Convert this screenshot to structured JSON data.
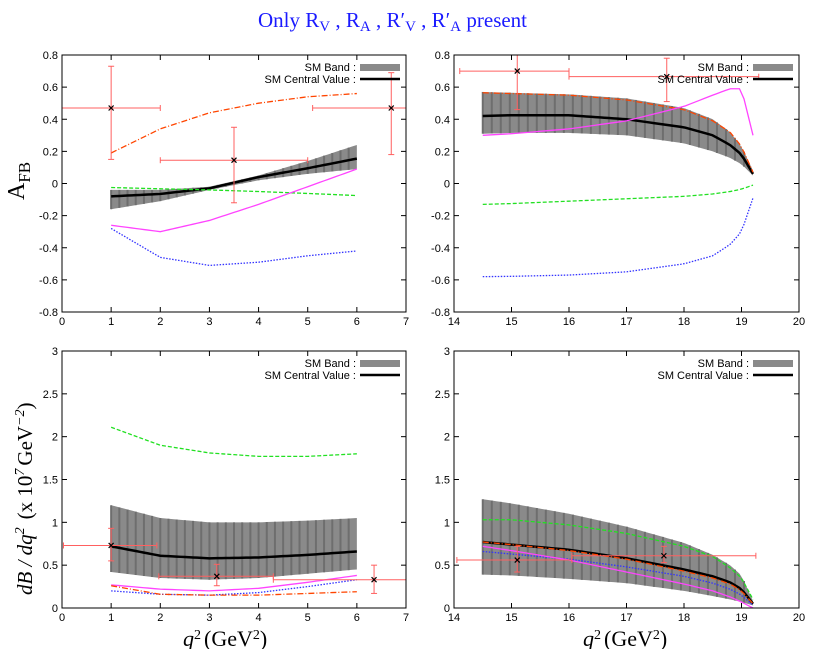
{
  "title": {
    "prefix": "Only R",
    "parts": [
      [
        "V",
        " , R"
      ],
      [
        "A",
        " , R′"
      ],
      [
        "V",
        " , R′"
      ],
      [
        "A",
        " present"
      ]
    ]
  },
  "title_text": "Only R_V , R_A , R′_V , R′_A present",
  "colors": {
    "title": "#1a1aff",
    "band": "#8a8a8a",
    "central": "#000000",
    "orange": "#ff4500",
    "green": "#22e022",
    "magenta": "#ff44ff",
    "blue": "#3333ff",
    "errorbar": "#ff6060"
  },
  "legend": {
    "band": "SM Band :",
    "central": "SM Central Value :"
  },
  "ylabels": {
    "top": "A",
    "top_sub": "FB",
    "bottom": "dB / dq",
    "bottom_exp": "2",
    "bottom_unit": "(x 10",
    "bottom_unit_exp": "7",
    "bottom_unit2": "GeV",
    "bottom_unit2_exp": "−2",
    ")": ")"
  },
  "xlabel": {
    "q": "q",
    "exp": "2",
    "unit": "(GeV",
    "unit_exp": "2",
    "close": ")"
  },
  "chart_data": [
    {
      "type": "line",
      "panel": "top-left",
      "xlim": [
        0,
        7
      ],
      "ylim": [
        -0.8,
        0.8
      ],
      "xticks": [
        "0",
        "1",
        "2",
        "3",
        "4",
        "5",
        "6",
        "7"
      ],
      "yticks": [
        "-0.8",
        "-0.6",
        "-0.4",
        "-0.2",
        "0",
        "0.2",
        "0.4",
        "0.6",
        "0.8"
      ],
      "x": [
        1,
        2,
        3,
        4,
        5,
        6
      ],
      "band_upper": [
        -0.04,
        -0.04,
        -0.02,
        0.05,
        0.14,
        0.24
      ],
      "band_lower": [
        -0.16,
        -0.11,
        -0.04,
        0.02,
        0.06,
        0.09
      ],
      "series": [
        {
          "color": "central",
          "values": [
            -0.08,
            -0.065,
            -0.03,
            0.04,
            0.095,
            0.155
          ]
        },
        {
          "color": "orange",
          "values": [
            0.19,
            0.34,
            0.44,
            0.5,
            0.54,
            0.56
          ]
        },
        {
          "color": "green",
          "values": [
            -0.025,
            -0.033,
            -0.04,
            -0.05,
            -0.062,
            -0.075
          ]
        },
        {
          "color": "magenta",
          "values": [
            -0.26,
            -0.3,
            -0.23,
            -0.13,
            -0.02,
            0.09
          ]
        },
        {
          "color": "blue",
          "values": [
            -0.28,
            -0.46,
            -0.51,
            -0.49,
            -0.45,
            -0.42
          ]
        }
      ],
      "points": [
        {
          "x": 1,
          "y": 0.47,
          "xlo": -0.5,
          "xhi": 2,
          "ylo": 0.15,
          "yhi": 0.73
        },
        {
          "x": 3.5,
          "y": 0.145,
          "xlo": 2,
          "xhi": 5,
          "ylo": -0.12,
          "yhi": 0.35
        },
        {
          "x": 6.7,
          "y": 0.47,
          "xlo": 5.1,
          "xhi": 7.5,
          "ylo": 0.18,
          "yhi": 0.69
        }
      ]
    },
    {
      "type": "line",
      "panel": "top-right",
      "xlim": [
        14,
        20
      ],
      "ylim": [
        -0.8,
        0.8
      ],
      "xticks": [
        "14",
        "15",
        "16",
        "17",
        "18",
        "19",
        "20"
      ],
      "yticks": [
        "-0.8",
        "-0.6",
        "-0.4",
        "-0.2",
        "0",
        "0.2",
        "0.4",
        "0.6",
        "0.8"
      ],
      "x": [
        14.5,
        15,
        16,
        17,
        18,
        18.5,
        18.8,
        19,
        19.2
      ],
      "band_upper": [
        0.57,
        0.565,
        0.555,
        0.53,
        0.47,
        0.4,
        0.32,
        0.23,
        0.08
      ],
      "band_lower": [
        0.31,
        0.315,
        0.315,
        0.3,
        0.25,
        0.2,
        0.16,
        0.12,
        0.05
      ],
      "series": [
        {
          "color": "central",
          "values": [
            0.42,
            0.425,
            0.425,
            0.4,
            0.35,
            0.3,
            0.24,
            0.18,
            0.06
          ]
        },
        {
          "color": "orange",
          "values": [
            0.565,
            0.56,
            0.55,
            0.52,
            0.46,
            0.39,
            0.32,
            0.23,
            0.07
          ]
        },
        {
          "color": "magenta",
          "values": [
            0.3,
            0.31,
            0.34,
            0.39,
            0.48,
            0.55,
            0.59,
            0.59,
            0.3
          ]
        },
        {
          "color": "green",
          "values": [
            -0.13,
            -0.125,
            -0.11,
            -0.095,
            -0.08,
            -0.065,
            -0.05,
            -0.035,
            -0.01
          ]
        },
        {
          "color": "blue",
          "values": [
            -0.58,
            -0.578,
            -0.57,
            -0.55,
            -0.5,
            -0.45,
            -0.38,
            -0.3,
            -0.09
          ]
        }
      ],
      "points": [
        {
          "x": 15.1,
          "y": 0.7,
          "xlo": 14.1,
          "xhi": 16.0,
          "ylo": 0.46,
          "yhi": 0.8
        },
        {
          "x": 17.7,
          "y": 0.665,
          "xlo": 16.0,
          "xhi": 19.3,
          "ylo": 0.51,
          "yhi": 0.78
        }
      ]
    },
    {
      "type": "line",
      "panel": "bottom-left",
      "xlim": [
        0,
        7
      ],
      "ylim": [
        0,
        3
      ],
      "xticks": [
        "0",
        "1",
        "2",
        "3",
        "4",
        "5",
        "6",
        "7"
      ],
      "yticks": [
        "0",
        "0.5",
        "1",
        "1.5",
        "2",
        "2.5",
        "3"
      ],
      "x": [
        1,
        2,
        3,
        4,
        5,
        6
      ],
      "band_upper": [
        1.2,
        1.05,
        1.0,
        1.0,
        1.02,
        1.05
      ],
      "band_lower": [
        0.42,
        0.35,
        0.33,
        0.35,
        0.4,
        0.45
      ],
      "series": [
        {
          "color": "central",
          "values": [
            0.72,
            0.61,
            0.58,
            0.59,
            0.62,
            0.66
          ]
        },
        {
          "color": "green",
          "values": [
            2.11,
            1.9,
            1.81,
            1.77,
            1.77,
            1.8
          ]
        },
        {
          "color": "magenta",
          "values": [
            0.27,
            0.22,
            0.2,
            0.23,
            0.3,
            0.38
          ]
        },
        {
          "color": "blue",
          "values": [
            0.2,
            0.16,
            0.15,
            0.18,
            0.25,
            0.33
          ]
        },
        {
          "color": "orange",
          "values": [
            0.26,
            0.16,
            0.15,
            0.15,
            0.17,
            0.19
          ]
        }
      ],
      "points": [
        {
          "x": 1,
          "y": 0.73,
          "xlo": 0.03,
          "xhi": 1.93,
          "ylo": 0.55,
          "yhi": 0.93
        },
        {
          "x": 3.15,
          "y": 0.37,
          "xlo": 1.97,
          "xhi": 4.3,
          "ylo": 0.26,
          "yhi": 0.51
        },
        {
          "x": 6.35,
          "y": 0.33,
          "xlo": 4.3,
          "xhi": 7.5,
          "ylo": 0.17,
          "yhi": 0.5
        }
      ]
    },
    {
      "type": "line",
      "panel": "bottom-right",
      "xlim": [
        14,
        20
      ],
      "ylim": [
        0,
        3
      ],
      "xticks": [
        "14",
        "15",
        "16",
        "17",
        "18",
        "19",
        "20"
      ],
      "yticks": [
        "0",
        "0.5",
        "1",
        "1.5",
        "2",
        "2.5",
        "3"
      ],
      "x": [
        14.5,
        15,
        16,
        17,
        18,
        18.5,
        18.8,
        19,
        19.2
      ],
      "band_upper": [
        1.27,
        1.22,
        1.1,
        0.95,
        0.76,
        0.62,
        0.5,
        0.38,
        0.08
      ],
      "band_lower": [
        0.39,
        0.38,
        0.34,
        0.29,
        0.2,
        0.14,
        0.1,
        0.07,
        0.03
      ],
      "series": [
        {
          "color": "central",
          "values": [
            0.77,
            0.74,
            0.68,
            0.58,
            0.45,
            0.37,
            0.3,
            0.22,
            0.05
          ]
        },
        {
          "color": "orange",
          "values": [
            0.77,
            0.74,
            0.67,
            0.57,
            0.43,
            0.35,
            0.28,
            0.2,
            0.05
          ]
        },
        {
          "color": "green",
          "values": [
            1.03,
            1.03,
            0.97,
            0.87,
            0.72,
            0.6,
            0.47,
            0.35,
            0.1
          ]
        },
        {
          "color": "blue",
          "values": [
            0.66,
            0.63,
            0.57,
            0.48,
            0.37,
            0.29,
            0.22,
            0.15,
            0.03
          ]
        },
        {
          "color": "magenta",
          "values": [
            0.72,
            0.67,
            0.56,
            0.42,
            0.28,
            0.2,
            0.13,
            0.07,
            0.0
          ]
        }
      ],
      "points": [
        {
          "x": 15.1,
          "y": 0.56,
          "xlo": 14.05,
          "xhi": 16.05,
          "ylo": 0.42,
          "yhi": 0.72
        },
        {
          "x": 17.65,
          "y": 0.61,
          "xlo": 16.05,
          "xhi": 19.25,
          "ylo": 0.53,
          "yhi": 0.72
        }
      ]
    }
  ]
}
